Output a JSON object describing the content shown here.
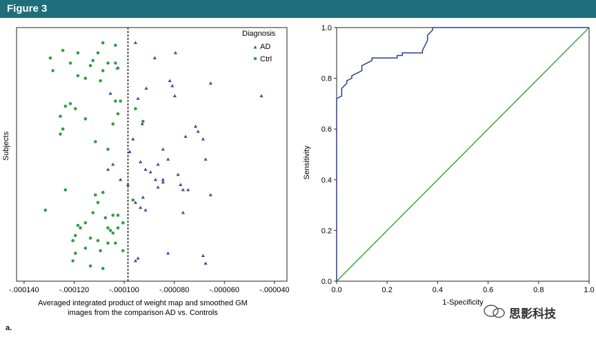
{
  "figure": {
    "title": "Figure 3",
    "panel_label": "a."
  },
  "watermark": {
    "text": "思影科技"
  },
  "colors": {
    "header": "#1f6e7c",
    "ad": "#4a47a8",
    "ctrl": "#2ea043",
    "roc_curve": "#2c3e8f",
    "diagonal": "#3aa63a"
  },
  "chart_data": [
    {
      "type": "scatter",
      "xlabel": "Averaged integrated product of weight map and smoothed GM images from the comparison AD vs. Controls",
      "xlabel_lines": [
        "Averaged integrated product of weight map and smoothed GM",
        "images from the comparison AD vs. Controls"
      ],
      "ylabel": "Subjects",
      "xlim": [
        -0.000143,
        -3.5e-05
      ],
      "ylim": [
        0,
        100
      ],
      "xticks": [
        -0.00014,
        -0.00012,
        -0.0001,
        -8e-05,
        -6e-05,
        -4e-05
      ],
      "xtick_labels": [
        "-.000140",
        "-.000120",
        "-.000100",
        "-.000080",
        "-.000060",
        "-.000040"
      ],
      "threshold_x": -9.85e-05,
      "legend": {
        "title": "Diagnosis",
        "placement": "top-right"
      },
      "series": [
        {
          "name": "AD",
          "marker": "triangle",
          "points": [
            [
              -9.55e-05,
              94
            ],
            [
              -8.78e-05,
              88
            ],
            [
              -7.95e-05,
              90
            ],
            [
              -0.0001028,
              84
            ],
            [
              -8.18e-05,
              79
            ],
            [
              -8.08e-05,
              77
            ],
            [
              -6.55e-05,
              78
            ],
            [
              -9.12e-05,
              76
            ],
            [
              -0.0001055,
              74
            ],
            [
              -9.45e-05,
              72
            ],
            [
              -7.98e-05,
              73
            ],
            [
              -4.52e-05,
              73
            ],
            [
              -9.28e-05,
              62
            ],
            [
              -7.15e-05,
              61
            ],
            [
              -7.05e-05,
              59
            ],
            [
              -7.55e-05,
              57
            ],
            [
              -9.65e-05,
              56
            ],
            [
              -6.85e-05,
              56
            ],
            [
              -9.78e-05,
              51
            ],
            [
              -8.45e-05,
              52
            ],
            [
              -8.25e-05,
              48
            ],
            [
              -6.75e-05,
              48
            ],
            [
              -9.35e-05,
              47
            ],
            [
              -0.0001045,
              46
            ],
            [
              -8.65e-05,
              46
            ],
            [
              -9.15e-05,
              44
            ],
            [
              -8.95e-05,
              43
            ],
            [
              -0.0001015,
              40
            ],
            [
              -8.75e-05,
              40
            ],
            [
              -8.45e-05,
              40
            ],
            [
              -0.0001065,
              44
            ],
            [
              -7.85e-05,
              42
            ],
            [
              -8.45e-05,
              39
            ],
            [
              -7.75e-05,
              38
            ],
            [
              -7.65e-05,
              36
            ],
            [
              -7.45e-05,
              36
            ],
            [
              -8.65e-05,
              37
            ],
            [
              -9.85e-05,
              38
            ],
            [
              -6.55e-05,
              34
            ],
            [
              -9.25e-05,
              33
            ],
            [
              -9.55e-05,
              31
            ],
            [
              -9.35e-05,
              29
            ],
            [
              -9.15e-05,
              28
            ],
            [
              -7.65e-05,
              27
            ],
            [
              -8.25e-05,
              11
            ],
            [
              -9.45e-05,
              9
            ],
            [
              -9.55e-05,
              8
            ],
            [
              -6.85e-05,
              10
            ],
            [
              -6.75e-05,
              7
            ]
          ]
        },
        {
          "name": "Ctrl",
          "marker": "circle",
          "points": [
            [
              -0.0001085,
              94
            ],
            [
              -0.0001035,
              93
            ],
            [
              -0.0001245,
              91
            ],
            [
              -0.0001185,
              90
            ],
            [
              -0.0001105,
              90
            ],
            [
              -0.0001295,
              88
            ],
            [
              -0.0001125,
              87
            ],
            [
              -0.0001215,
              86
            ],
            [
              -0.0001065,
              86
            ],
            [
              -0.0001035,
              86
            ],
            [
              -0.0001135,
              85
            ],
            [
              -0.0001285,
              83
            ],
            [
              -0.0001025,
              84
            ],
            [
              -0.0001085,
              83
            ],
            [
              -0.0001185,
              81
            ],
            [
              -0.0001155,
              80
            ],
            [
              -0.0001095,
              79
            ],
            [
              -0.0001015,
              71
            ],
            [
              -0.0001215,
              70
            ],
            [
              -0.0001235,
              69
            ],
            [
              -0.0001195,
              68
            ],
            [
              -0.0001035,
              71
            ],
            [
              -9.55e-05,
              68
            ],
            [
              -0.0001025,
              66
            ],
            [
              -0.0001255,
              65
            ],
            [
              -0.0001155,
              64
            ],
            [
              -9.25e-05,
              63
            ],
            [
              -0.0001045,
              62
            ],
            [
              -0.0001245,
              60
            ],
            [
              -0.0001255,
              58
            ],
            [
              -0.0001115,
              55
            ],
            [
              -0.0001065,
              52
            ],
            [
              -0.0001235,
              36
            ],
            [
              -0.0001085,
              35
            ],
            [
              -0.0001115,
              34
            ],
            [
              -9.65e-05,
              32
            ],
            [
              -0.0001105,
              31
            ],
            [
              -0.0001315,
              28
            ],
            [
              -0.0001125,
              27
            ],
            [
              -0.0001045,
              26
            ],
            [
              -0.0001025,
              26
            ],
            [
              -0.0001075,
              25
            ],
            [
              -0.0001155,
              23
            ],
            [
              -0.0001005,
              23
            ],
            [
              -0.0001185,
              22
            ],
            [
              -0.0001175,
              21
            ],
            [
              -0.0001065,
              21
            ],
            [
              -0.0001025,
              21
            ],
            [
              -0.0001055,
              20
            ],
            [
              -0.0001195,
              18
            ],
            [
              -0.0001045,
              19
            ],
            [
              -0.0001135,
              17
            ],
            [
              -0.0001205,
              16
            ],
            [
              -0.0001105,
              16
            ],
            [
              -0.0001065,
              15
            ],
            [
              -0.0001035,
              15
            ],
            [
              -0.0001155,
              13
            ],
            [
              -0.0001095,
              12
            ],
            [
              -0.0001195,
              11
            ],
            [
              -0.0001005,
              12
            ],
            [
              -0.0001205,
              8
            ],
            [
              -0.0001085,
              5
            ],
            [
              -0.0001135,
              6
            ]
          ]
        }
      ]
    },
    {
      "type": "line",
      "xlabel": "1-Specificity",
      "ylabel": "Sensitivity",
      "xlim": [
        0,
        1
      ],
      "ylim": [
        0,
        1
      ],
      "xticks": [
        0,
        0.2,
        0.4,
        0.6,
        0.8,
        1
      ],
      "xtick_labels": [
        "0.0",
        "0.2",
        "0.4",
        "0.6",
        "0.8",
        "1.0"
      ],
      "yticks": [
        0,
        0.2,
        0.4,
        0.6,
        0.8,
        1
      ],
      "ytick_labels": [
        "0.0",
        "0.2",
        "0.4",
        "0.6",
        "0.8",
        "1.0"
      ],
      "series": [
        {
          "kind": "roc",
          "x": [
            0,
            0,
            0.02,
            0.02,
            0.04,
            0.04,
            0.06,
            0.06,
            0.1,
            0.1,
            0.12,
            0.12,
            0.14,
            0.14,
            0.16,
            0.16,
            0.24,
            0.24,
            0.26,
            0.26,
            0.34,
            0.34,
            0.36,
            0.36,
            0.38,
            0.38,
            1
          ],
          "y": [
            0,
            0.72,
            0.73,
            0.76,
            0.78,
            0.79,
            0.8,
            0.81,
            0.83,
            0.85,
            0.86,
            0.86,
            0.87,
            0.88,
            0.88,
            0.88,
            0.88,
            0.89,
            0.89,
            0.9,
            0.9,
            0.91,
            0.95,
            0.97,
            0.99,
            1,
            1
          ]
        },
        {
          "kind": "reference",
          "x": [
            0,
            1
          ],
          "y": [
            0,
            1
          ]
        }
      ]
    }
  ]
}
